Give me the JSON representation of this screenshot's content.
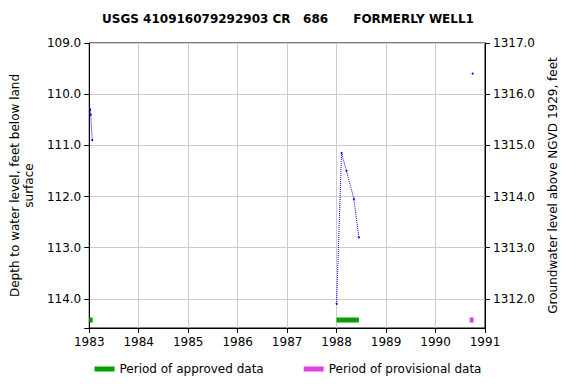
{
  "chart_data": {
    "type": "line",
    "title": "USGS 410916079292903 CR   686      FORMERLY WELL1",
    "xlabel": "",
    "ylabel": "Depth to water level, feet below land\nsurface",
    "y2label": "Groundwater level above NGVD 1929, feet",
    "xlim": [
      1983,
      1991
    ],
    "xticks": [
      1983,
      1984,
      1985,
      1986,
      1987,
      1988,
      1989,
      1990,
      1991
    ],
    "ylim": [
      109.0,
      114.57
    ],
    "yticks": [
      {
        "value": 109,
        "label": "109.0"
      },
      {
        "value": 110,
        "label": "110.0"
      },
      {
        "value": 111,
        "label": "111.0"
      },
      {
        "value": 112,
        "label": "112.0"
      },
      {
        "value": 113,
        "label": "113.0"
      },
      {
        "value": 114,
        "label": "114.0"
      }
    ],
    "y2lim": [
      1311.43,
      1317.0
    ],
    "y2ticks": [
      {
        "value": 1312,
        "label": "1312.0"
      },
      {
        "value": 1313,
        "label": "1313.0"
      },
      {
        "value": 1314,
        "label": "1314.0"
      },
      {
        "value": 1315,
        "label": "1315.0"
      },
      {
        "value": 1316,
        "label": "1316.0"
      },
      {
        "value": 1317,
        "label": "1317.0"
      }
    ],
    "grid": true,
    "legend": "bottom",
    "series": [
      {
        "x": [
          1983.02,
          1983.03,
          1983.06
        ],
        "values": [
          110.3,
          110.4,
          110.9
        ],
        "color": "#0000ff",
        "marker": "dot",
        "line_style": "dotted"
      },
      {
        "x": [
          1988.0,
          1988.1,
          1988.2,
          1988.35,
          1988.45
        ],
        "values": [
          114.1,
          111.15,
          111.5,
          112.05,
          112.8
        ],
        "color": "#0000ff",
        "marker": "dot",
        "line_style": "dotted"
      },
      {
        "x": [
          1990.75
        ],
        "values": [
          109.6
        ],
        "color": "#0000ff",
        "marker": "dot",
        "line_style": "dotted"
      }
    ],
    "periods": [
      {
        "name": "Period of approved data",
        "color": "#00a000",
        "ranges": [
          [
            1983.0,
            1983.07
          ],
          [
            1988.0,
            1988.45
          ]
        ]
      },
      {
        "name": "Period of provisional data",
        "color": "#e040e0",
        "ranges": [
          [
            1990.69,
            1990.77
          ]
        ]
      }
    ]
  }
}
